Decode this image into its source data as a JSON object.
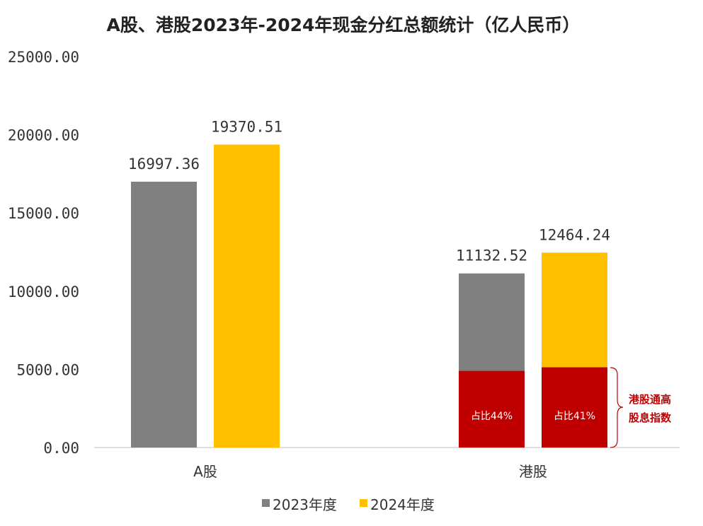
{
  "chart_data": {
    "type": "bar",
    "title": "A股、港股2023年-2024年现金分红总额统计（亿人民币）",
    "categories": [
      "A股",
      "港股"
    ],
    "series": [
      {
        "name": "2023年度",
        "values": [
          16997.36,
          11132.52
        ],
        "color": "#808080"
      },
      {
        "name": "2024年度",
        "values": [
          19370.51,
          12464.24
        ],
        "color": "#ffc000"
      }
    ],
    "data_labels": [
      [
        "16997.36",
        "11132.52"
      ],
      [
        "19370.51",
        "12464.24"
      ]
    ],
    "yticks": [
      "0.00",
      "5000.00",
      "10000.00",
      "15000.00",
      "20000.00",
      "25000.00"
    ],
    "ylim": [
      0,
      25000
    ],
    "legend_position": "bottom",
    "grid": false,
    "overlay": {
      "category": "港股",
      "color": "#c00000",
      "values": [
        4900,
        5130
      ],
      "labels": [
        "占比44%",
        "占比41%"
      ],
      "annotation_lines": [
        "港股通高",
        "股息指数"
      ]
    }
  }
}
